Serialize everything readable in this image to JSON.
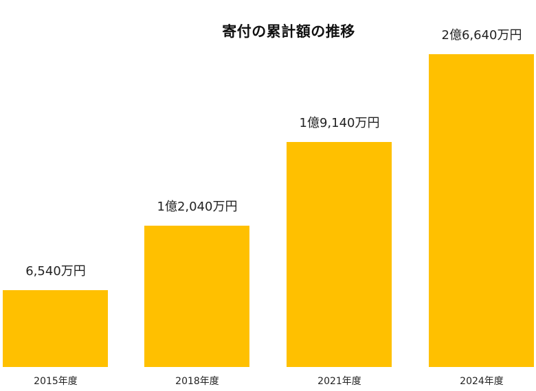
{
  "chart_data": {
    "type": "bar",
    "title": "寄付の累計額の推移",
    "xlabel": "",
    "ylabel": "",
    "categories": [
      "2015年度",
      "2018年度",
      "2021年度",
      "2024年度"
    ],
    "values": [
      6540,
      12040,
      19140,
      26640
    ],
    "value_unit": "万円",
    "data_labels": [
      "6,540万円",
      "1億2,040万円",
      "1億9,140万円",
      "2億6,640万円"
    ],
    "bar_color": "#FFC000",
    "grid": false,
    "legend": null,
    "ylim": [
      0,
      27000
    ]
  },
  "title": "寄付の累計額の推移",
  "bars": [
    {
      "category": "2015年度",
      "label": "6,540万円"
    },
    {
      "category": "2018年度",
      "label": "1億2,040万円"
    },
    {
      "category": "2021年度",
      "label": "1億9,140万円"
    },
    {
      "category": "2024年度",
      "label": "2億6,640万円"
    }
  ]
}
